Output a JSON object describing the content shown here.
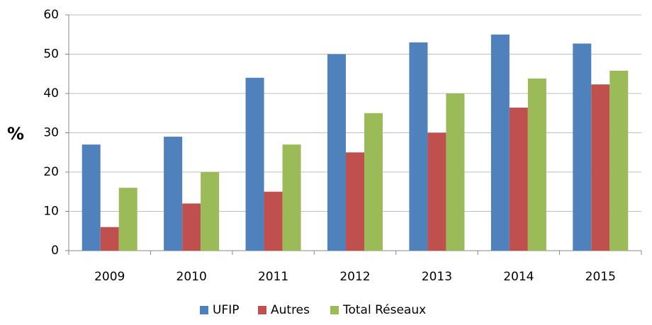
{
  "chart_data": {
    "type": "bar",
    "ylabel": "%",
    "categories": [
      "2009",
      "2010",
      "2011",
      "2012",
      "2013",
      "2014",
      "2015"
    ],
    "series": [
      {
        "name": "UFIP",
        "color": "#4f81bd",
        "values": [
          27,
          29,
          44,
          50,
          53,
          55,
          52.7
        ]
      },
      {
        "name": "Autres",
        "color": "#c0504d",
        "values": [
          6,
          12,
          15,
          25,
          30,
          36.4,
          42.3
        ]
      },
      {
        "name": "Total Réseaux",
        "color": "#9bbb59",
        "values": [
          16,
          20,
          27,
          35,
          40,
          43.8,
          45.8
        ]
      }
    ],
    "ylim": [
      0,
      60
    ],
    "yticks": [
      0,
      10,
      20,
      30,
      40,
      50,
      60
    ],
    "grid": true,
    "legend": "bottom"
  }
}
